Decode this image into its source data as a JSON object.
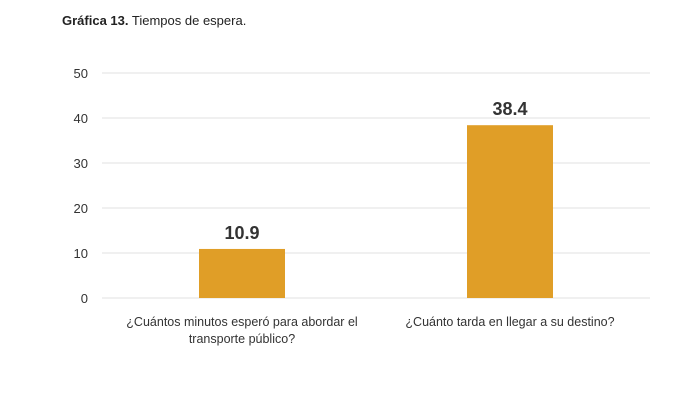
{
  "chart_data": {
    "type": "bar",
    "title_prefix": "Gráfica 13.",
    "title": "Tiempos de espera.",
    "categories": [
      [
        "¿Cuántos minutos esperó para abordar el",
        "transporte público?"
      ],
      [
        "¿Cuánto tarda en llegar a su destino?"
      ]
    ],
    "values": [
      10.9,
      38.4
    ],
    "data_labels": [
      "10.9",
      "38.4"
    ],
    "yticks": [
      "0",
      "10",
      "20",
      "30",
      "40",
      "50"
    ],
    "ylim": [
      0,
      50
    ],
    "xlabel": "",
    "ylabel": "",
    "grid": true,
    "bar_color": "#E09E27"
  }
}
